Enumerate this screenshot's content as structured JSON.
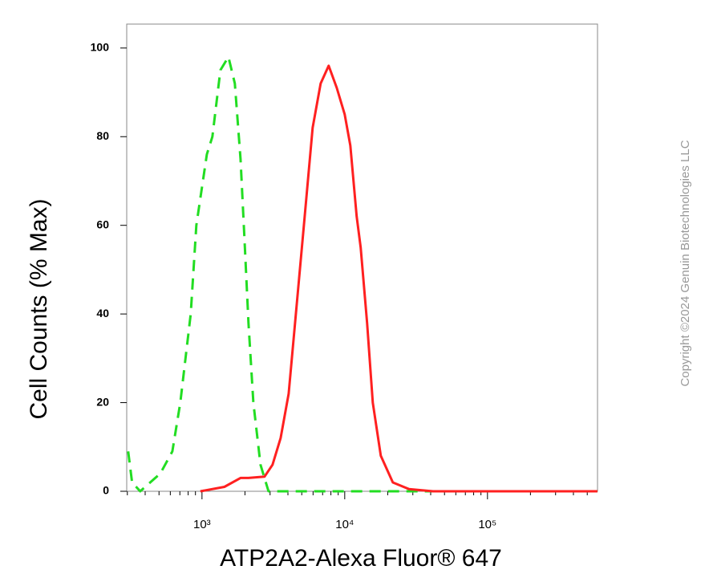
{
  "chart_data": {
    "type": "line",
    "x_label": "ATP2A2-Alexa Fluor® 647",
    "y_label": "Cell Counts (% Max)",
    "watermark": "Copyright ©2024 Genuin Biotechnologies LLC",
    "xscale": "log",
    "xlim": [
      297,
      590000
    ],
    "ylim": [
      0,
      105.4
    ],
    "xticks": [
      {
        "value": 1000,
        "label": "10³"
      },
      {
        "value": 10000,
        "label": "10⁴"
      },
      {
        "value": 100000,
        "label": "10⁵"
      }
    ],
    "xminorticks": [
      300,
      400,
      500,
      600,
      700,
      800,
      900,
      2000,
      3000,
      4000,
      5000,
      6000,
      7000,
      8000,
      9000,
      20000,
      30000,
      40000,
      50000,
      60000,
      70000,
      80000,
      90000,
      200000,
      300000,
      400000,
      500000
    ],
    "yticks": [
      0,
      20,
      40,
      60,
      80,
      100
    ],
    "grid": false,
    "series": [
      {
        "color": "#22dd22",
        "dash": true,
        "x": [
          304,
          324,
          369,
          511,
          620,
          705,
          834,
          913,
          1081,
          1183,
          1346,
          1531,
          1699,
          1862,
          1985,
          2118,
          2291,
          2570,
          2924,
          4045,
          589000
        ],
        "values": [
          9,
          2,
          0,
          4,
          9,
          20,
          40,
          60,
          76,
          80,
          95,
          98,
          92,
          75,
          57,
          38,
          20,
          6,
          0,
          0,
          0
        ]
      },
      {
        "color": "#ff2020",
        "dash": false,
        "x": [
          974,
          1436,
          1862,
          2118,
          2742,
          3120,
          3556,
          4045,
          4604,
          5240,
          5960,
          6780,
          7720,
          8790,
          10000,
          10940,
          12130,
          12940,
          14350,
          15730,
          17900,
          21740,
          28130,
          41500,
          589000
        ],
        "values": [
          0,
          1,
          3,
          3,
          3.3,
          6,
          12,
          22,
          42,
          62,
          82,
          92,
          96,
          91,
          85,
          78,
          62,
          55,
          38,
          20,
          8,
          2,
          0.5,
          0,
          0
        ]
      }
    ]
  }
}
